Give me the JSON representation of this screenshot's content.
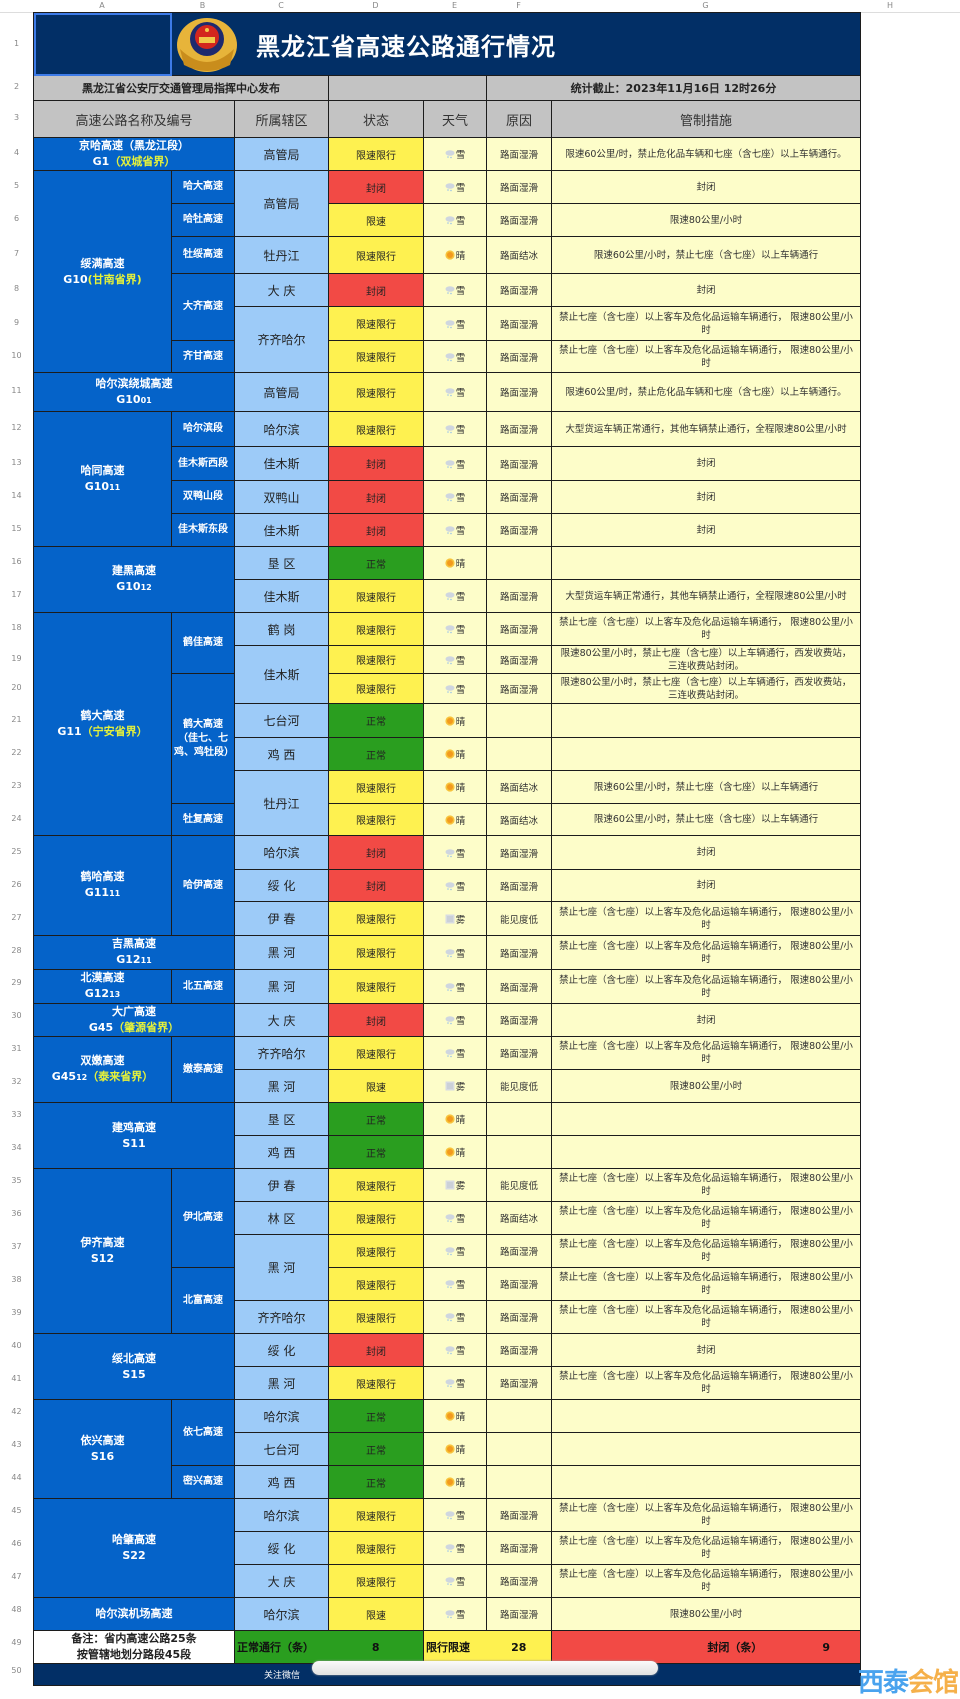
{
  "column_letters": [
    "A",
    "B",
    "C",
    "D",
    "E",
    "F",
    "G",
    "H"
  ],
  "header": {
    "title": "黑龙江省高速公路通行情况",
    "publisher": "黑龙江省公安厅交通管理局指挥中心发布",
    "stat_time": "统计截止：2023年11月16日 12时26分",
    "columns": [
      "高速公路名称及编号",
      "所属辖区",
      "状态",
      "天气",
      "原因",
      "管制措施"
    ]
  },
  "status_colors": {
    "限速限行": "#fef150",
    "限速": "#fef150",
    "封闭": "#f24a45",
    "正常": "#2a9e1f"
  },
  "weather_icons": {
    "雪": "snow-cloud-icon",
    "晴": "sun-icon",
    "雾": "fog-icon"
  },
  "rows": [
    {
      "a": {
        "name": "京哈高速（黑龙江段）",
        "code": "G1",
        "note": "（双城省界）"
      },
      "c": "高管局",
      "s": "限速限行",
      "w": "雪",
      "r": "路面湿滑",
      "m": "限速60公里/时，禁止危化品车辆和七座（含七座）以上车辆通行。"
    },
    {
      "a": {
        "name": "绥满高速",
        "code": "G10",
        "note": "(甘南省界)"
      },
      "b": "哈大高速",
      "c": "高管局",
      "s": "封闭",
      "w": "雪",
      "r": "路面湿滑",
      "m": "封闭"
    },
    {
      "a": null,
      "b": "哈牡高速",
      "c": null,
      "s": "限速",
      "w": "雪",
      "r": "路面湿滑",
      "m": "限速80公里/小时"
    },
    {
      "a": null,
      "b": "牡绥高速",
      "c": "牡丹江",
      "s": "限速限行",
      "w": "晴",
      "r": "路面结冰",
      "m": "限速60公里/小时，禁止七座（含七座）以上车辆通行"
    },
    {
      "a": null,
      "b": "大齐高速",
      "c": "大 庆",
      "s": "封闭",
      "w": "雪",
      "r": "路面湿滑",
      "m": "封闭"
    },
    {
      "a": null,
      "b": null,
      "c": "齐齐哈尔",
      "s": "限速限行",
      "w": "雪",
      "r": "路面湿滑",
      "m": "禁止七座（含七座）以上客车及危化品运输车辆通行， 限速80公里/小时"
    },
    {
      "a": null,
      "b": "齐甘高速",
      "c": null,
      "s": "限速限行",
      "w": "雪",
      "r": "路面湿滑",
      "m": "禁止七座（含七座）以上客车及危化品运输车辆通行， 限速80公里/小时"
    },
    {
      "a": {
        "name": "哈尔滨绕城高速",
        "code": "G10",
        "code_small": "01"
      },
      "c": "高管局",
      "s": "限速限行",
      "w": "雪",
      "r": "路面湿滑",
      "m": "限速60公里/时，禁止危化品车辆和七座（含七座）以上车辆通行。"
    },
    {
      "a": {
        "name": "哈同高速",
        "code": "G10",
        "code_small": "11"
      },
      "b": "哈尔滨段",
      "c": "哈尔滨",
      "s": "限速限行",
      "w": "雪",
      "r": "路面湿滑",
      "m": "大型货运车辆正常通行，其他车辆禁止通行，全程限速80公里/小时"
    },
    {
      "a": null,
      "b": "佳木斯西段",
      "c": "佳木斯",
      "s": "封闭",
      "w": "雪",
      "r": "路面湿滑",
      "m": "封闭"
    },
    {
      "a": null,
      "b": "双鸭山段",
      "c": "双鸭山",
      "s": "封闭",
      "w": "雪",
      "r": "路面湿滑",
      "m": "封闭"
    },
    {
      "a": null,
      "b": "佳木斯东段",
      "c": "佳木斯",
      "s": "封闭",
      "w": "雪",
      "r": "路面湿滑",
      "m": "封闭"
    },
    {
      "a": {
        "name": "建黑高速",
        "code": "G10",
        "code_small": "12"
      },
      "c": "垦 区",
      "s": "正常",
      "w": "晴",
      "r": "",
      "m": ""
    },
    {
      "a": null,
      "c": "佳木斯",
      "s": "限速限行",
      "w": "雪",
      "r": "路面湿滑",
      "m": "大型货运车辆正常通行，其他车辆禁止通行，全程限速80公里/小时"
    },
    {
      "a": {
        "name": "鹤大高速",
        "code": "G11",
        "note": "（宁安省界）"
      },
      "b": "鹤佳高速",
      "c": "鹤 岗",
      "s": "限速限行",
      "w": "雪",
      "r": "路面湿滑",
      "m": "禁止七座（含七座）以上客车及危化品运输车辆通行， 限速80公里/小时"
    },
    {
      "a": null,
      "b": null,
      "c": "佳木斯",
      "s": "限速限行",
      "w": "雪",
      "r": "路面湿滑",
      "m": "限速80公里/小时，禁止七座（含七座）以上车辆通行，西发收费站，三连收费站封闭。"
    },
    {
      "a": null,
      "b": "鹤大高速（佳七、七鸡、鸡牡段）",
      "c": null,
      "s": "限速限行",
      "w": "雪",
      "r": "路面湿滑",
      "m": "限速80公里/小时，禁止七座（含七座）以上车辆通行，西发收费站，三连收费站封闭。"
    },
    {
      "a": null,
      "b": null,
      "c": "七台河",
      "s": "正常",
      "w": "晴",
      "r": "",
      "m": ""
    },
    {
      "a": null,
      "b": null,
      "c": "鸡 西",
      "s": "正常",
      "w": "晴",
      "r": "",
      "m": ""
    },
    {
      "a": null,
      "b": null,
      "c": "牡丹江",
      "s": "限速限行",
      "w": "晴",
      "r": "路面结冰",
      "m": "限速60公里/小时，禁止七座（含七座）以上车辆通行"
    },
    {
      "a": null,
      "b": "牡复高速",
      "c": null,
      "s": "限速限行",
      "w": "晴",
      "r": "路面结冰",
      "m": "限速60公里/小时，禁止七座（含七座）以上车辆通行"
    },
    {
      "a": {
        "name": "鹤哈高速",
        "code": "G11",
        "code_small": "11"
      },
      "b": "哈伊高速",
      "c": "哈尔滨",
      "s": "封闭",
      "w": "雪",
      "r": "路面湿滑",
      "m": "封闭"
    },
    {
      "a": null,
      "b": null,
      "c": "绥 化",
      "s": "封闭",
      "w": "雪",
      "r": "路面湿滑",
      "m": "封闭"
    },
    {
      "a": null,
      "b": null,
      "c": "伊 春",
      "s": "限速限行",
      "w": "雾",
      "r": "能见度低",
      "m": "禁止七座（含七座）以上客车及危化品运输车辆通行， 限速80公里/小时"
    },
    {
      "a": {
        "name": "吉黑高速",
        "code": "G12",
        "code_small": "11"
      },
      "c": "黑 河",
      "s": "限速限行",
      "w": "雪",
      "r": "路面湿滑",
      "m": "禁止七座（含七座）以上客车及危化品运输车辆通行， 限速80公里/小时"
    },
    {
      "a": {
        "name": "北漠高速",
        "code": "G12",
        "code_small": "13"
      },
      "b": "北五高速",
      "c": "黑 河",
      "s": "限速限行",
      "w": "雪",
      "r": "路面湿滑",
      "m": "禁止七座（含七座）以上客车及危化品运输车辆通行， 限速80公里/小时"
    },
    {
      "a": {
        "name": "大广高速",
        "code": "G45",
        "note": "（肇源省界）"
      },
      "c": "大 庆",
      "s": "封闭",
      "w": "雪",
      "r": "路面湿滑",
      "m": "封闭"
    },
    {
      "a": {
        "name": "双嫩高速",
        "code": "G45",
        "code_small": "12",
        "note": "（泰来省界）"
      },
      "b": "嫩泰高速",
      "c": "齐齐哈尔",
      "s": "限速限行",
      "w": "雪",
      "r": "路面湿滑",
      "m": "禁止七座（含七座）以上客车及危化品运输车辆通行， 限速80公里/小时"
    },
    {
      "a": null,
      "b": null,
      "c": "黑 河",
      "s": "限速",
      "w": "雾",
      "r": "能见度低",
      "m": "限速80公里/小时"
    },
    {
      "a": {
        "name": "建鸡高速",
        "code": "S11"
      },
      "c": "垦 区",
      "s": "正常",
      "w": "晴",
      "r": "",
      "m": ""
    },
    {
      "a": null,
      "c": "鸡 西",
      "s": "正常",
      "w": "晴",
      "r": "",
      "m": ""
    },
    {
      "a": {
        "name": "伊齐高速",
        "code": "S12"
      },
      "b": "伊北高速",
      "c": "伊 春",
      "s": "限速限行",
      "w": "雾",
      "r": "能见度低",
      "m": "禁止七座（含七座）以上客车及危化品运输车辆通行， 限速80公里/小时"
    },
    {
      "a": null,
      "b": null,
      "c": "林 区",
      "s": "限速限行",
      "w": "雪",
      "r": "路面结冰",
      "m": "禁止七座（含七座）以上客车及危化品运输车辆通行， 限速80公里/小时"
    },
    {
      "a": null,
      "b": null,
      "c": "黑 河",
      "s": "限速限行",
      "w": "雪",
      "r": "路面湿滑",
      "m": "禁止七座（含七座）以上客车及危化品运输车辆通行， 限速80公里/小时"
    },
    {
      "a": null,
      "b": "北富高速",
      "c": null,
      "s": "限速限行",
      "w": "雪",
      "r": "路面湿滑",
      "m": "禁止七座（含七座）以上客车及危化品运输车辆通行， 限速80公里/小时"
    },
    {
      "a": null,
      "b": null,
      "c": "齐齐哈尔",
      "s": "限速限行",
      "w": "雪",
      "r": "路面湿滑",
      "m": "禁止七座（含七座）以上客车及危化品运输车辆通行， 限速80公里/小时"
    },
    {
      "a": {
        "name": "绥北高速",
        "code": "S15"
      },
      "c": "绥 化",
      "s": "封闭",
      "w": "雪",
      "r": "路面湿滑",
      "m": "封闭"
    },
    {
      "a": null,
      "c": "黑 河",
      "s": "限速限行",
      "w": "雪",
      "r": "路面湿滑",
      "m": "禁止七座（含七座）以上客车及危化品运输车辆通行， 限速80公里/小时"
    },
    {
      "a": {
        "name": "依兴高速",
        "code": "S16"
      },
      "b": "依七高速",
      "c": "哈尔滨",
      "s": "正常",
      "w": "晴",
      "r": "",
      "m": ""
    },
    {
      "a": null,
      "b": null,
      "c": "七台河",
      "s": "正常",
      "w": "晴",
      "r": "",
      "m": ""
    },
    {
      "a": null,
      "b": "密兴高速",
      "c": "鸡 西",
      "s": "正常",
      "w": "晴",
      "r": "",
      "m": ""
    },
    {
      "a": {
        "name": "哈肇高速",
        "code": "S22"
      },
      "c": "哈尔滨",
      "s": "限速限行",
      "w": "雪",
      "r": "路面湿滑",
      "m": "禁止七座（含七座）以上客车及危化品运输车辆通行， 限速80公里/小时"
    },
    {
      "a": null,
      "c": "绥 化",
      "s": "限速限行",
      "w": "雪",
      "r": "路面湿滑",
      "m": "禁止七座（含七座）以上客车及危化品运输车辆通行， 限速80公里/小时"
    },
    {
      "a": null,
      "c": "大 庆",
      "s": "限速限行",
      "w": "雪",
      "r": "路面湿滑",
      "m": "禁止七座（含七座）以上客车及危化品运输车辆通行， 限速80公里/小时"
    },
    {
      "a": {
        "name": "哈尔滨机场高速"
      },
      "c": "哈尔滨",
      "s": "限速",
      "w": "雪",
      "r": "路面湿滑",
      "m": "限速80公里/小时"
    }
  ],
  "summary": {
    "note_line1": "备注：省内高速公路25条",
    "note_line2": "按管辖地划分路段45段",
    "normal_label": "正常通行（条）",
    "normal_count": "8",
    "limited_label": "限行限速",
    "limited_count": "28",
    "closed_label": "封闭（条）",
    "closed_count": "9"
  },
  "footer": {
    "text": "关注微信"
  },
  "watermark": {
    "part1": "西泰",
    "part2": "会馆"
  }
}
